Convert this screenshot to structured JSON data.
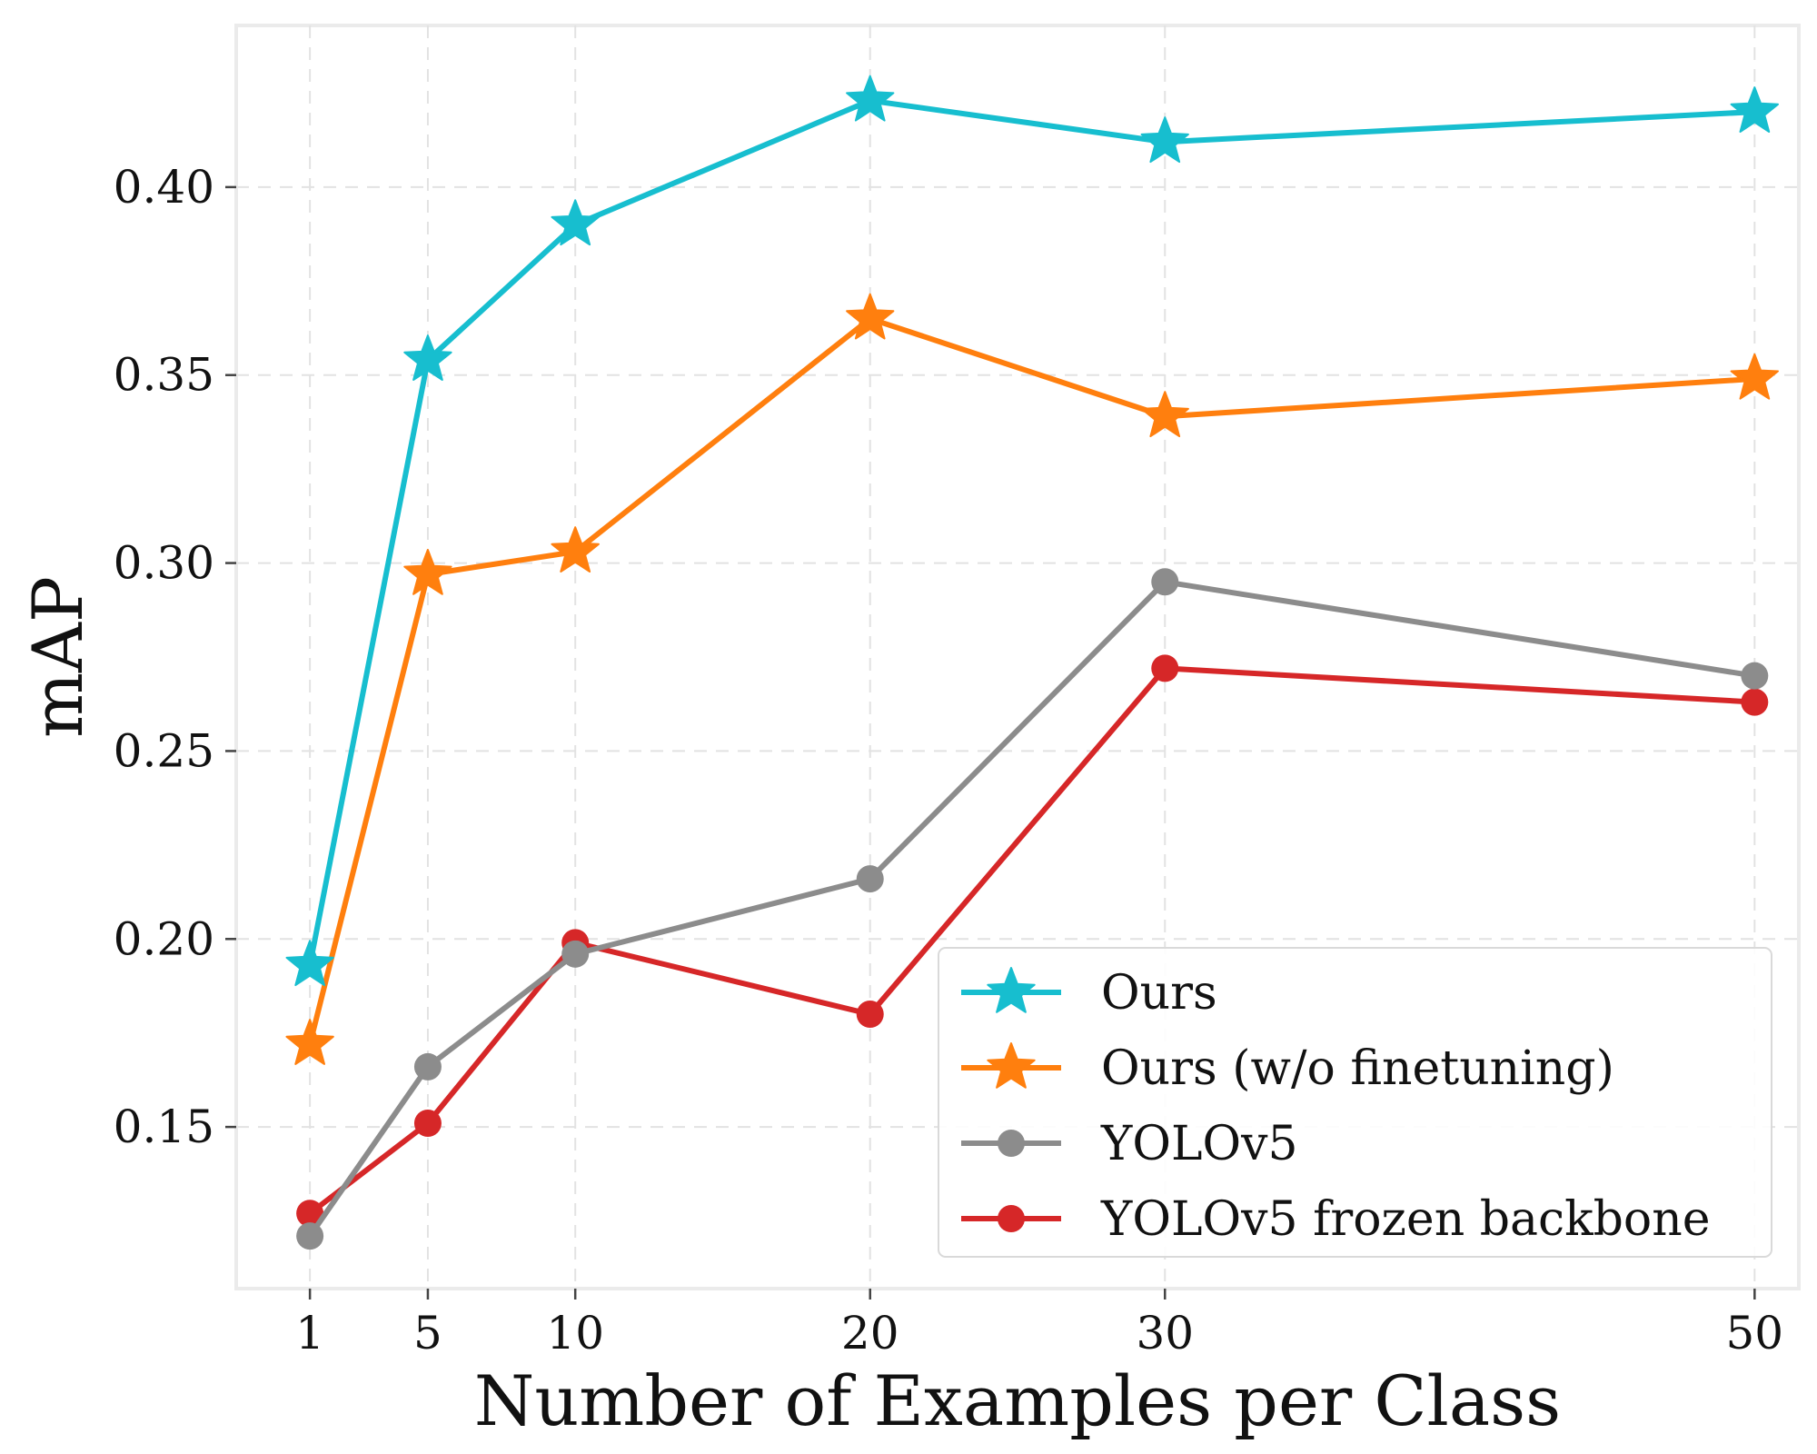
{
  "chart_data": {
    "type": "line",
    "title": "",
    "xlabel": "Number of Examples per Class",
    "ylabel": "mAP",
    "x": [
      1,
      5,
      10,
      20,
      30,
      50
    ],
    "xticks": [
      "1",
      "5",
      "10",
      "20",
      "30",
      "50"
    ],
    "yticks": [
      "0.15",
      "0.20",
      "0.25",
      "0.30",
      "0.35",
      "0.40"
    ],
    "ylim": [
      0.107,
      0.443
    ],
    "xlim": [
      -1.5,
      51.5
    ],
    "grid": true,
    "legend_position": "lower-right",
    "series": [
      {
        "name": "Ours",
        "color": "#17becf",
        "marker": "star",
        "values": [
          0.193,
          0.354,
          0.39,
          0.423,
          0.412,
          0.42
        ]
      },
      {
        "name": "Ours (w/o finetuning)",
        "color": "#ff7f0e",
        "marker": "star",
        "values": [
          0.172,
          0.297,
          0.303,
          0.365,
          0.339,
          0.349
        ]
      },
      {
        "name": "YOLOv5",
        "color": "#8c8c8c",
        "marker": "circle",
        "values": [
          0.121,
          0.166,
          0.196,
          0.216,
          0.295,
          0.27
        ]
      },
      {
        "name": "YOLOv5 frozen backbone",
        "color": "#d62728",
        "marker": "circle",
        "values": [
          0.127,
          0.151,
          0.199,
          0.18,
          0.272,
          0.263
        ]
      }
    ]
  }
}
